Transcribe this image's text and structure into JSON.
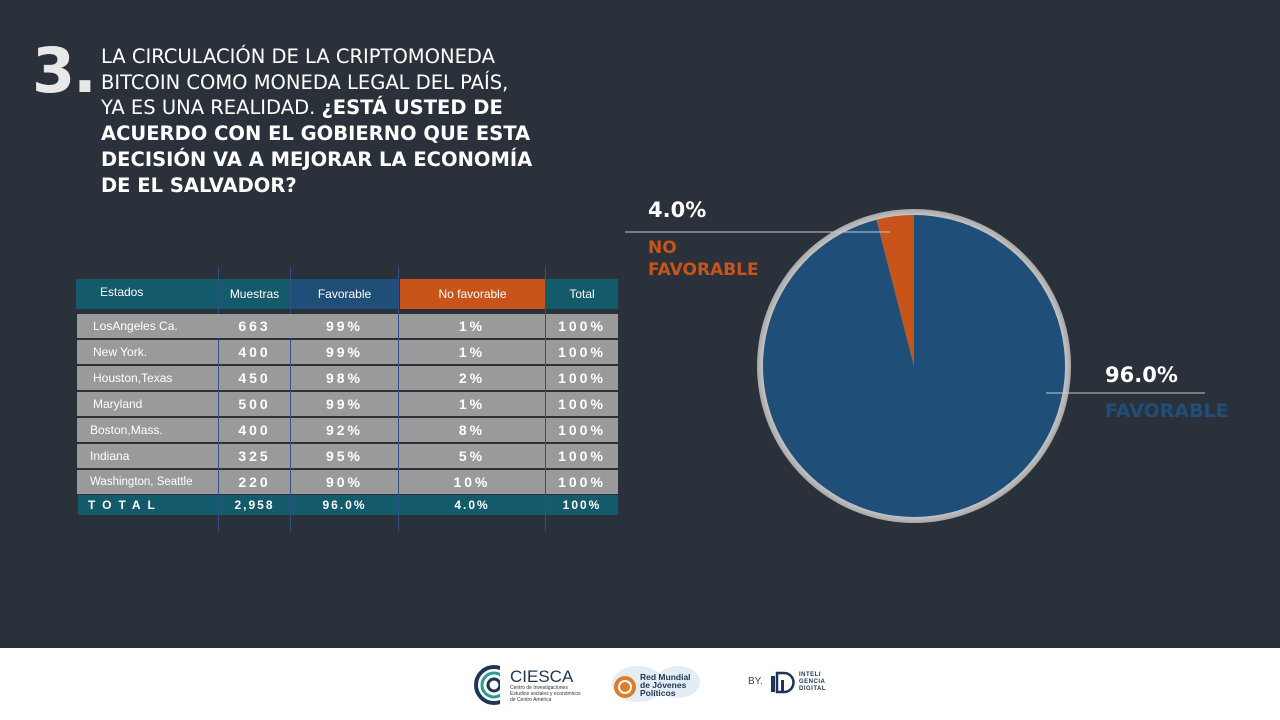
{
  "question": {
    "number": "3.",
    "lines_regular": [
      "LA CIRCULACIÓN DE LA CRIPTOMONEDA",
      "BITCOIN COMO MONEDA LEGAL DEL PAÍS,",
      "YA ES UNA REALIDAD."
    ],
    "lines_bold": [
      "¿ESTÁ USTED DE",
      "ACUERDO CON EL GOBIERNO QUE ESTA",
      "DECISIÓN VA A MEJORAR LA ECONOMÍA",
      "DE EL SALVADOR?"
    ]
  },
  "table": {
    "headers": [
      "Estados",
      "Muestras",
      "Favorable",
      "No favorable",
      "Total"
    ],
    "rows": [
      [
        "LosAngeles Ca.",
        "663",
        "99%",
        "1%",
        "100%"
      ],
      [
        "New York.",
        "400",
        "99%",
        "1%",
        "100%"
      ],
      [
        "Houston,Texas",
        "450",
        "98%",
        "2%",
        "100%"
      ],
      [
        "Maryland",
        "500",
        "99%",
        "1%",
        "100%"
      ],
      [
        "Boston,Mass.",
        "400",
        "92%",
        "8%",
        "100%"
      ],
      [
        "Indiana",
        "325",
        "95%",
        "5%",
        "100%"
      ],
      [
        "Washington, Seattle",
        "220",
        "90%",
        "10%",
        "100%"
      ]
    ],
    "total": [
      "TOTAL",
      "2,958",
      "96.0%",
      "4.0%",
      "100%"
    ]
  },
  "chart_data": {
    "type": "pie",
    "title": "",
    "slices": [
      {
        "label": "NO FAVORABLE",
        "label_lines": [
          "NO",
          "FAVORABLE"
        ],
        "value": 4.0,
        "value_label": "4.0%",
        "color": "#c8541a"
      },
      {
        "label": "FAVORABLE",
        "label_lines": [
          "FAVORABLE"
        ],
        "value": 96.0,
        "value_label": "96.0%",
        "color": "#1f4e79"
      }
    ]
  },
  "colors": {
    "background": "#2b313b",
    "header_teal": "#135a6a",
    "header_blue": "#1f4e79",
    "header_orange": "#c8541a",
    "row_gray": "#9a9a9a"
  },
  "footer": {
    "ciesca_name": "CIESCA",
    "ciesca_sub": [
      "Centro de Investigaciones",
      "Estudios sociales y económicos",
      "de Centro América"
    ],
    "red_mundial": [
      "Red Mundial",
      "de Jóvenes",
      "Políticos"
    ],
    "by_label": "BY.",
    "inteligencia": [
      "INTELI",
      "GENCIA",
      "DIGITAL"
    ]
  }
}
